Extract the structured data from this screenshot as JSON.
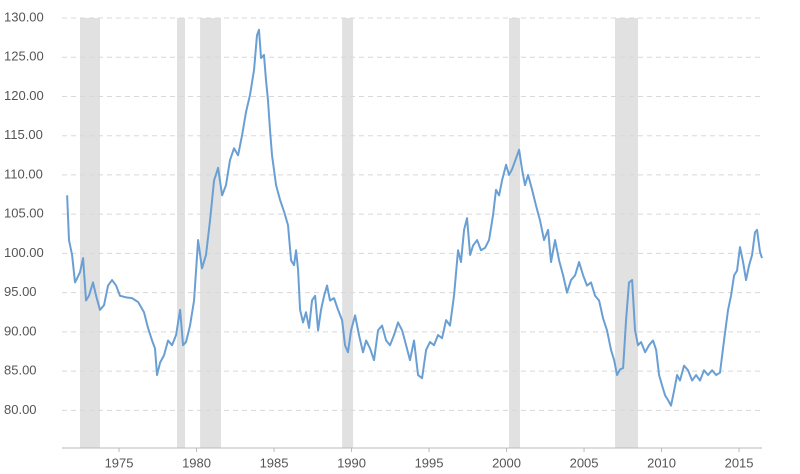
{
  "chart_data": {
    "type": "line",
    "x": [
      1971.65,
      1971.77,
      1971.97,
      1972.16,
      1972.29,
      1972.48,
      1972.68,
      1972.87,
      1973.06,
      1973.32,
      1973.52,
      1973.77,
      1974.03,
      1974.29,
      1974.55,
      1974.81,
      1975.06,
      1975.45,
      1975.84,
      1976.23,
      1976.61,
      1976.87,
      1977.13,
      1977.32,
      1977.45,
      1977.65,
      1977.9,
      1978.16,
      1978.42,
      1978.68,
      1978.94,
      1979.13,
      1979.32,
      1979.58,
      1979.84,
      1980.1,
      1980.35,
      1980.61,
      1980.87,
      1981.13,
      1981.39,
      1981.65,
      1981.9,
      1982.16,
      1982.42,
      1982.68,
      1982.94,
      1983.19,
      1983.45,
      1983.71,
      1983.9,
      1984.03,
      1984.16,
      1984.35,
      1984.48,
      1984.61,
      1984.74,
      1984.87,
      1985.13,
      1985.39,
      1985.65,
      1985.9,
      1986.1,
      1986.29,
      1986.42,
      1986.55,
      1986.68,
      1986.87,
      1987.06,
      1987.26,
      1987.45,
      1987.65,
      1987.84,
      1988.03,
      1988.23,
      1988.42,
      1988.61,
      1988.87,
      1989.13,
      1989.39,
      1989.58,
      1989.77,
      1989.97,
      1990.23,
      1990.48,
      1990.74,
      1990.94,
      1991.19,
      1991.45,
      1991.71,
      1991.97,
      1992.23,
      1992.48,
      1992.74,
      1993.0,
      1993.26,
      1993.52,
      1993.77,
      1994.03,
      1994.29,
      1994.55,
      1994.81,
      1995.06,
      1995.32,
      1995.58,
      1995.84,
      1996.1,
      1996.35,
      1996.61,
      1996.87,
      1997.06,
      1997.26,
      1997.45,
      1997.65,
      1997.84,
      1998.1,
      1998.35,
      1998.61,
      1998.87,
      1999.13,
      1999.32,
      1999.52,
      1999.71,
      1999.97,
      2000.16,
      2000.35,
      2000.61,
      2000.81,
      2001.0,
      2001.19,
      2001.39,
      2001.65,
      2001.9,
      2002.16,
      2002.42,
      2002.68,
      2002.87,
      2003.13,
      2003.39,
      2003.65,
      2003.9,
      2004.16,
      2004.42,
      2004.68,
      2004.94,
      2005.19,
      2005.45,
      2005.71,
      2005.97,
      2006.23,
      2006.48,
      2006.74,
      2006.94,
      2007.13,
      2007.32,
      2007.52,
      2007.71,
      2007.9,
      2008.1,
      2008.29,
      2008.48,
      2008.68,
      2008.94,
      2009.19,
      2009.45,
      2009.65,
      2009.84,
      2010.03,
      2010.23,
      2010.42,
      2010.61,
      2010.81,
      2011.0,
      2011.19,
      2011.45,
      2011.71,
      2011.97,
      2012.23,
      2012.48,
      2012.74,
      2013.0,
      2013.26,
      2013.52,
      2013.77,
      2014.03,
      2014.29,
      2014.48,
      2014.68,
      2014.87,
      2015.06,
      2015.26,
      2015.45,
      2015.65,
      2015.84,
      2016.03,
      2016.16,
      2016.35,
      2016.48
    ],
    "values": [
      107.4,
      101.7,
      99.8,
      96.3,
      96.8,
      97.6,
      99.4,
      94.0,
      94.6,
      96.3,
      94.6,
      92.8,
      93.4,
      95.9,
      96.6,
      95.9,
      94.6,
      94.4,
      94.3,
      93.8,
      92.5,
      90.5,
      88.9,
      87.9,
      84.5,
      86.1,
      87.0,
      88.9,
      88.3,
      89.6,
      92.8,
      88.3,
      88.7,
      90.8,
      94.0,
      101.7,
      98.1,
      99.8,
      104.2,
      109.3,
      110.9,
      107.4,
      108.7,
      111.9,
      113.4,
      112.5,
      115.1,
      118.0,
      120.2,
      123.4,
      127.8,
      128.5,
      124.9,
      125.3,
      122.1,
      119.5,
      115.7,
      112.5,
      108.7,
      106.8,
      105.3,
      103.6,
      99.1,
      98.5,
      100.4,
      97.9,
      92.8,
      91.2,
      92.5,
      90.5,
      94.0,
      94.6,
      90.2,
      92.8,
      94.6,
      95.9,
      94.0,
      94.3,
      92.8,
      91.5,
      88.3,
      87.4,
      90.2,
      92.1,
      89.6,
      87.4,
      88.9,
      87.9,
      86.4,
      90.2,
      90.8,
      88.9,
      88.3,
      89.6,
      91.2,
      90.2,
      88.3,
      86.4,
      88.9,
      84.5,
      84.1,
      87.7,
      88.7,
      88.3,
      89.6,
      89.2,
      91.5,
      90.8,
      94.6,
      100.4,
      98.9,
      103.0,
      104.5,
      99.8,
      101.0,
      101.7,
      100.4,
      100.7,
      101.7,
      104.9,
      108.1,
      107.4,
      109.3,
      111.3,
      110.0,
      110.7,
      112.1,
      113.2,
      110.7,
      108.7,
      110.0,
      108.1,
      106.1,
      104.2,
      101.7,
      103.0,
      98.9,
      101.7,
      99.1,
      97.2,
      95.0,
      96.6,
      97.2,
      98.9,
      97.2,
      95.9,
      96.3,
      94.6,
      94.0,
      91.7,
      90.2,
      87.7,
      86.4,
      84.5,
      85.2,
      85.4,
      91.5,
      96.3,
      96.6,
      90.2,
      88.3,
      88.7,
      87.4,
      88.3,
      88.9,
      87.7,
      84.5,
      83.2,
      81.9,
      81.3,
      80.6,
      82.5,
      84.5,
      83.8,
      85.7,
      85.1,
      83.8,
      84.5,
      83.8,
      85.1,
      84.5,
      85.1,
      84.5,
      84.8,
      88.9,
      92.8,
      94.6,
      97.2,
      97.8,
      100.8,
      98.9,
      96.6,
      98.5,
      99.8,
      102.7,
      103.0,
      100.2,
      99.4
    ],
    "color": "#6a9fd4",
    "shaded_ranges": [
      [
        1972.48,
        1973.77
      ],
      [
        1978.74,
        1979.26
      ],
      [
        1980.23,
        1981.58
      ],
      [
        1989.39,
        1990.1
      ],
      [
        2000.16,
        2000.87
      ],
      [
        2007.0,
        2008.48
      ]
    ],
    "shade_color": "#e1e1e1",
    "xlim": [
      1971.32,
      2016.48
    ],
    "xticks": [
      1975,
      1980,
      1985,
      1990,
      1995,
      2000,
      2005,
      2010,
      2015
    ],
    "ylim": [
      75.2,
      130
    ],
    "yticks": [
      {
        "value": 80,
        "label": "80.00"
      },
      {
        "value": 85,
        "label": "85.00"
      },
      {
        "value": 90,
        "label": "90.00"
      },
      {
        "value": 95,
        "label": "95.00"
      },
      {
        "value": 100,
        "label": "100.00"
      },
      {
        "value": 105,
        "label": "105.00"
      },
      {
        "value": 110,
        "label": "110.00"
      },
      {
        "value": 115,
        "label": "115.00"
      },
      {
        "value": 120,
        "label": "120.00"
      },
      {
        "value": 125,
        "label": "125.00"
      },
      {
        "value": 130,
        "label": "130.00"
      }
    ],
    "grid": true
  }
}
